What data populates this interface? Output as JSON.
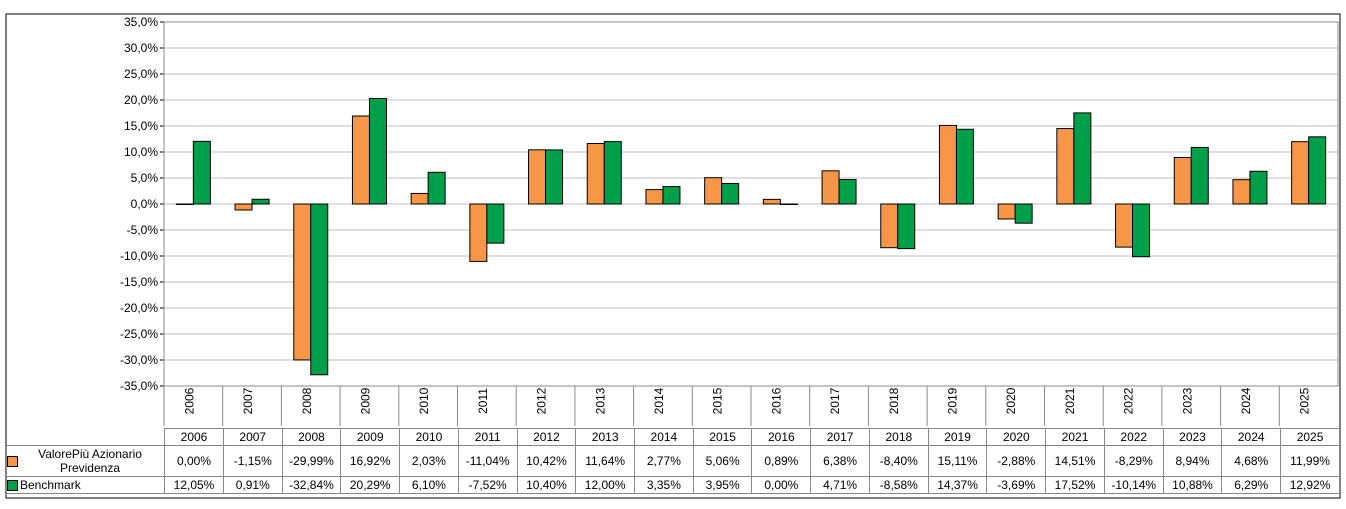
{
  "chart_data": {
    "type": "bar",
    "categories": [
      "2006",
      "2007",
      "2008",
      "2009",
      "2010",
      "2011",
      "2012",
      "2013",
      "2014",
      "2015",
      "2016",
      "2017",
      "2018",
      "2019",
      "2020",
      "2021",
      "2022",
      "2023",
      "2024",
      "2025"
    ],
    "series": [
      {
        "name": "ValorePiù Azionario Previdenza",
        "color": "#f79646",
        "values": [
          0.0,
          -1.15,
          -29.99,
          16.92,
          2.03,
          -11.04,
          10.42,
          11.64,
          2.77,
          5.06,
          0.89,
          6.38,
          -8.4,
          15.11,
          -2.88,
          14.51,
          -8.29,
          8.94,
          4.68,
          11.99
        ],
        "value_labels": [
          "0,00%",
          "-1,15%",
          "-29,99%",
          "16,92%",
          "2,03%",
          "-11,04%",
          "10,42%",
          "11,64%",
          "2,77%",
          "5,06%",
          "0,89%",
          "6,38%",
          "-8,40%",
          "15,11%",
          "-2,88%",
          "14,51%",
          "-8,29%",
          "8,94%",
          "4,68%",
          "11,99%"
        ]
      },
      {
        "name": "Benchmark",
        "color": "#00a04a",
        "values": [
          12.05,
          0.91,
          -32.84,
          20.29,
          6.1,
          -7.52,
          10.4,
          12.0,
          3.35,
          3.95,
          0.0,
          4.71,
          -8.58,
          14.37,
          -3.69,
          17.52,
          -10.14,
          10.88,
          6.29,
          12.92
        ],
        "value_labels": [
          "12,05%",
          "0,91%",
          "-32,84%",
          "20,29%",
          "6,10%",
          "-7,52%",
          "10,40%",
          "12,00%",
          "3,35%",
          "3,95%",
          "0,00%",
          "4,71%",
          "-8,58%",
          "14,37%",
          "-3,69%",
          "17,52%",
          "-10,14%",
          "10,88%",
          "6,29%",
          "12,92%"
        ]
      }
    ],
    "ylim": [
      -35,
      35
    ],
    "yticks": [
      {
        "value": -35,
        "label": "-35,0%"
      },
      {
        "value": -30,
        "label": "-30,0%"
      },
      {
        "value": -25,
        "label": "-25,0%"
      },
      {
        "value": -20,
        "label": "-20,0%"
      },
      {
        "value": -15,
        "label": "-15,0%"
      },
      {
        "value": -10,
        "label": "-10,0%"
      },
      {
        "value": -5,
        "label": "-5,0%"
      },
      {
        "value": 0,
        "label": "0,0%"
      },
      {
        "value": 5,
        "label": "5,0%"
      },
      {
        "value": 10,
        "label": "10,0%"
      },
      {
        "value": 15,
        "label": "15,0%"
      },
      {
        "value": 20,
        "label": "20,0%"
      },
      {
        "value": 25,
        "label": "25,0%"
      },
      {
        "value": 30,
        "label": "30,0%"
      },
      {
        "value": 35,
        "label": "35,0%"
      }
    ],
    "grid": true
  }
}
